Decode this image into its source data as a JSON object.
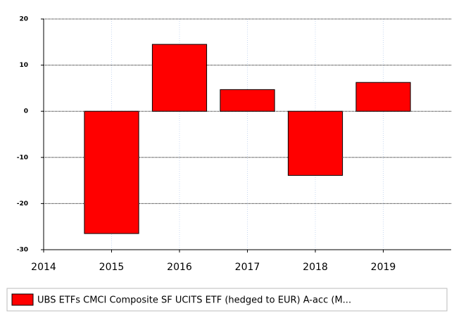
{
  "chart_data": {
    "type": "bar",
    "x": [
      2015,
      2016,
      2017,
      2018,
      2019
    ],
    "series": [
      {
        "name": "UBS ETFs CMCI Composite SF UCITS ETF (hedged to EUR) A-acc (M...",
        "color": "#ff0000",
        "values": [
          -26.5,
          14.5,
          4.7,
          -13.9,
          6.25
        ]
      }
    ],
    "xlim": [
      2014,
      2020
    ],
    "xticks": [
      2014,
      2015,
      2016,
      2017,
      2018,
      2019
    ],
    "ylim": [
      -30,
      20
    ],
    "yticks": [
      -30,
      -20,
      -10,
      0,
      10,
      20
    ],
    "grid": true
  }
}
